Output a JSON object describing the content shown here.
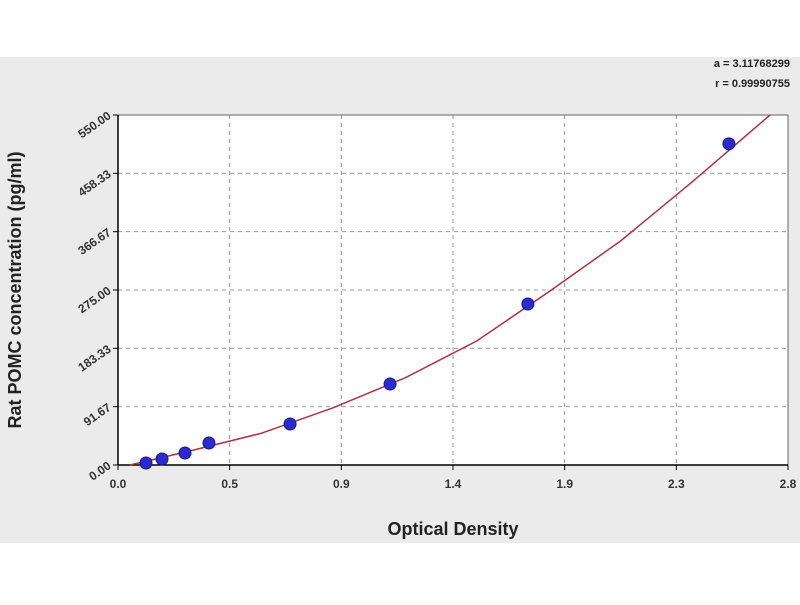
{
  "chart_data": {
    "type": "scatter",
    "x_label": "Optical Density",
    "y_label": "Rat POMC concentration (pg/ml)",
    "annotations": [
      "a = 3.11768299",
      "r = 0.99990755"
    ],
    "xlim": [
      0,
      2.8
    ],
    "ylim": [
      0,
      550
    ],
    "xticks": [
      {
        "value": 0,
        "label": "0.0"
      },
      {
        "value": 0.4667,
        "label": "0.5"
      },
      {
        "value": 0.9333,
        "label": "0.9"
      },
      1.4,
      {
        "value": 1.8667,
        "label": "1.9"
      },
      {
        "value": 2.3333,
        "label": "2.3"
      },
      2.8
    ],
    "yticks": [
      {
        "value": 0,
        "label": "0.00"
      },
      91.67,
      183.33,
      {
        "value": 275,
        "label": "275.00"
      },
      366.67,
      458.33,
      {
        "value": 550,
        "label": "550.00"
      }
    ],
    "grid": true,
    "series": [
      {
        "type": "line",
        "color": "#b03040",
        "x": [
          0.05,
          0.3,
          0.6,
          0.9,
          1.2,
          1.5,
          1.8,
          2.1,
          2.4,
          2.725
        ],
        "values": [
          0,
          22,
          50,
          90,
          137,
          195,
          272,
          352,
          445,
          550
        ]
      },
      {
        "type": "scatter",
        "color": "#2a2ad0",
        "x": [
          0.117,
          0.184,
          0.28,
          0.38,
          0.719,
          1.137,
          1.713,
          2.553
        ],
        "values": [
          3.1,
          9.4,
          18.9,
          34.6,
          64.4,
          127.3,
          253,
          504.7
        ]
      }
    ]
  }
}
